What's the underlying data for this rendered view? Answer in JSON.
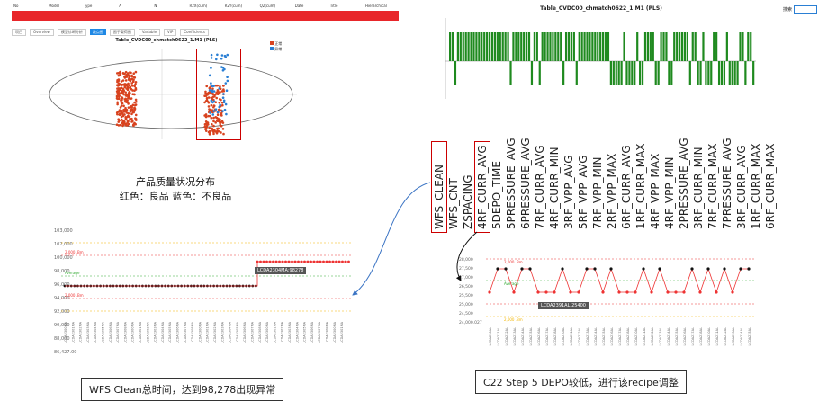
{
  "header": {
    "columns": [
      "No",
      "Model",
      "Type",
      "A",
      "N",
      "R2X(cum)",
      "R2Y(cum)",
      "Q2(cum)",
      "Date",
      "Title",
      "Hierarchical"
    ]
  },
  "toolbar": {
    "items": [
      "项目",
      "Overview",
      "模型诊断分析",
      "散点图",
      "因子载荷图",
      "Variable",
      "VIP",
      "Coefficients"
    ],
    "active": "散点图"
  },
  "scatter": {
    "title": "Table_CVDC00_chmatch0622_1.M1 (PLS)",
    "legend": [
      "正常",
      "异常"
    ],
    "colors": {
      "good": "#d8431f",
      "bad": "#2a7fd4"
    }
  },
  "caption_scatter": {
    "line1": "产品质量状况分布",
    "line2": "红色：良品    蓝色：不良品"
  },
  "bar": {
    "title": "Table_CVDC00_chmatch0622_1.M1 (PLS)",
    "search_label": "搜索"
  },
  "vertical_labels": [
    "WFS_CLEAN",
    "WFS_CNT",
    "ZSPACING",
    "4RF_CURR_AVG",
    "5DEPO_TIME",
    "5PRESSURE_AVG",
    "6PRESSURE_AVG",
    "7RF_CURR_AVG",
    "4RF_CURR_MIN",
    "3RF_VPP_AVG",
    "5RF_VPP_AVG",
    "7RF_VPP_MIN",
    "2RF_VPP_MAX",
    "6RF_CURR_AVG",
    "1RF_CURR_MAX",
    "4RF_VPP_MAX",
    "4RF_VPP_MIN",
    "2PRESSURE_AVG",
    "3RF_CURR_MIN",
    "7RF_CURR_MAX",
    "7PRESSURE_AVG",
    "3RF_CURR_AVG",
    "1RF_CURR_MAX",
    "6RF_CURR_MAX"
  ],
  "highlight_labels": [
    "WFS_CLEAN",
    "5DEPO_TIME"
  ],
  "left_trend": {
    "y_ticks": [
      "103,000",
      "102,000",
      "100,000",
      "98,000",
      "96,000",
      "94,000",
      "92,000",
      "90,000",
      "88,000",
      "86,427.00"
    ],
    "annotations": {
      "upper": "2,000 .Bm",
      "avg": "Average",
      "lower": "2,000 .Bm"
    },
    "tooltip": "LCDA2304MA:98278"
  },
  "right_trend": {
    "y_ticks": [
      "28,000",
      "27,500",
      "27,000",
      "26,500",
      "25,500",
      "25,000",
      "24,500",
      "24,000.027"
    ],
    "annotations": {
      "upper": "2,000 .Bm",
      "avg": "Average",
      "lower": "2,000 .Bm"
    },
    "tooltip": "LCDA2391AL:25400"
  },
  "caption_left": "WFS Clean总时间，达到98,278出现异常",
  "caption_right": "C22 Step 5 DEPO较低，进行该recipe调整"
}
